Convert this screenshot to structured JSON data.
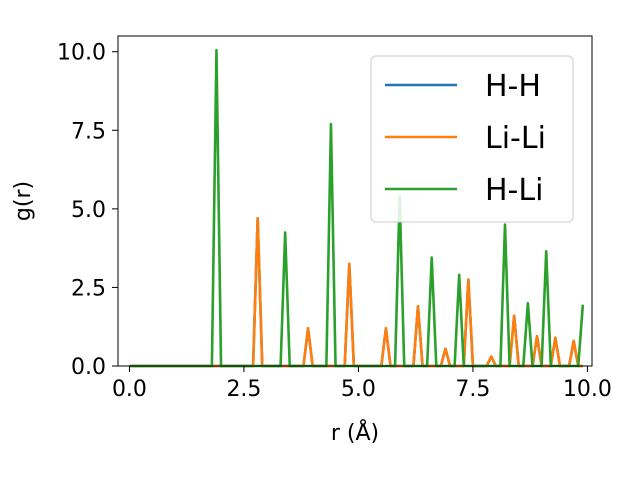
{
  "chart_data": {
    "type": "line",
    "xlabel": "r (Å)",
    "ylabel": "g(r)",
    "xlim": [
      -0.25,
      10.1
    ],
    "ylim": [
      0,
      10.5
    ],
    "xticks": [
      0.0,
      2.5,
      5.0,
      7.5,
      10.0
    ],
    "xtick_labels": [
      "0.0",
      "2.5",
      "5.0",
      "7.5",
      "10.0"
    ],
    "yticks": [
      0.0,
      2.5,
      5.0,
      7.5,
      10.0
    ],
    "ytick_labels": [
      "0.0",
      "2.5",
      "5.0",
      "7.5",
      "10.0"
    ],
    "grid": false,
    "legend_position": "upper right",
    "series": [
      {
        "name": "H-H",
        "color": "#1f77b4",
        "x": [
          0.0,
          2.7,
          2.8,
          2.9,
          3.8,
          3.9,
          4.0,
          4.7,
          4.8,
          4.9,
          5.5,
          5.6,
          5.7,
          6.2,
          6.3,
          6.4,
          6.8,
          6.9,
          7.0,
          7.3,
          7.4,
          7.5,
          7.8,
          7.9,
          8.0,
          8.3,
          8.4,
          8.5,
          8.8,
          8.9,
          9.0,
          9.2,
          9.3,
          9.4,
          9.6,
          9.7,
          9.8,
          9.9
        ],
        "y": [
          0.0,
          0.0,
          4.7,
          0.0,
          0.0,
          1.2,
          0.0,
          0.0,
          3.25,
          0.0,
          0.0,
          1.2,
          0.0,
          0.0,
          1.9,
          0.0,
          0.0,
          0.55,
          0.0,
          0.0,
          2.75,
          0.0,
          0.0,
          0.3,
          0.0,
          0.0,
          1.6,
          0.0,
          0.0,
          0.95,
          0.0,
          0.0,
          0.9,
          0.0,
          0.0,
          0.8,
          0.0,
          0.0
        ]
      },
      {
        "name": "Li-Li",
        "color": "#ff7f0e",
        "x": [
          0.0,
          2.7,
          2.8,
          2.9,
          3.8,
          3.9,
          4.0,
          4.7,
          4.8,
          4.9,
          5.5,
          5.6,
          5.7,
          6.2,
          6.3,
          6.4,
          6.8,
          6.9,
          7.0,
          7.3,
          7.4,
          7.5,
          7.8,
          7.9,
          8.0,
          8.3,
          8.4,
          8.5,
          8.8,
          8.9,
          9.0,
          9.2,
          9.3,
          9.4,
          9.6,
          9.7,
          9.8,
          9.9
        ],
        "y": [
          0.0,
          0.0,
          4.7,
          0.0,
          0.0,
          1.2,
          0.0,
          0.0,
          3.25,
          0.0,
          0.0,
          1.2,
          0.0,
          0.0,
          1.9,
          0.0,
          0.0,
          0.55,
          0.0,
          0.0,
          2.75,
          0.0,
          0.0,
          0.3,
          0.0,
          0.0,
          1.6,
          0.0,
          0.0,
          0.95,
          0.0,
          0.0,
          0.9,
          0.0,
          0.0,
          0.8,
          0.0,
          0.0
        ]
      },
      {
        "name": "H-Li",
        "color": "#2ca02c",
        "x": [
          0.0,
          1.8,
          1.9,
          2.0,
          3.3,
          3.4,
          3.5,
          4.3,
          4.4,
          4.5,
          5.8,
          5.9,
          6.0,
          6.5,
          6.6,
          6.7,
          7.1,
          7.2,
          7.3,
          8.1,
          8.2,
          8.3,
          8.6,
          8.7,
          8.8,
          9.0,
          9.1,
          9.2,
          9.8,
          9.9
        ],
        "y": [
          0.0,
          0.0,
          10.05,
          0.0,
          0.0,
          4.25,
          0.0,
          0.0,
          7.7,
          0.0,
          0.0,
          5.4,
          0.0,
          0.0,
          3.45,
          0.0,
          0.0,
          2.9,
          0.0,
          0.0,
          4.5,
          0.0,
          0.0,
          2.0,
          0.0,
          0.0,
          3.65,
          0.0,
          0.0,
          1.95
        ]
      }
    ]
  }
}
